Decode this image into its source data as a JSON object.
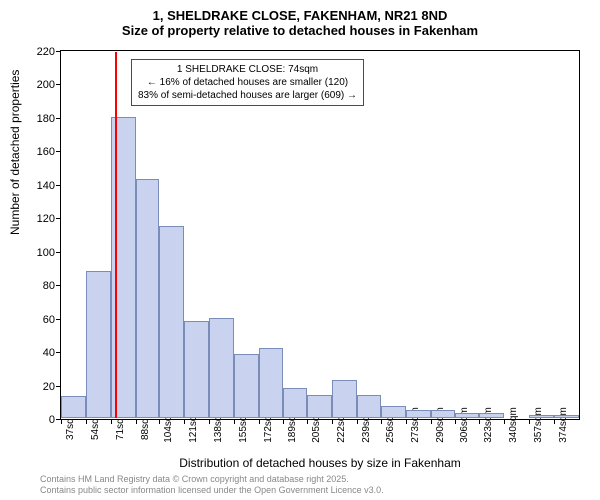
{
  "title_main": "1, SHELDRAKE CLOSE, FAKENHAM, NR21 8ND",
  "title_sub": "Size of property relative to detached houses in Fakenham",
  "y_label": "Number of detached properties",
  "x_label": "Distribution of detached houses by size in Fakenham",
  "footer_line1": "Contains HM Land Registry data © Crown copyright and database right 2025.",
  "footer_line2": "Contains public sector information licensed under the Open Government Licence v3.0.",
  "annotation": {
    "line1": "1 SHELDRAKE CLOSE: 74sqm",
    "line2": "← 16% of detached houses are smaller (120)",
    "line3": "83% of semi-detached houses are larger (609) →"
  },
  "chart": {
    "type": "histogram",
    "ylim": [
      0,
      220
    ],
    "ytick_step": 20,
    "xlim": [
      37,
      391
    ],
    "xtick_labels": [
      "37sqm",
      "54sqm",
      "71sqm",
      "88sqm",
      "104sqm",
      "121sqm",
      "138sqm",
      "155sqm",
      "172sqm",
      "189sqm",
      "205sqm",
      "222sqm",
      "239sqm",
      "256sqm",
      "273sqm",
      "290sqm",
      "306sqm",
      "323sqm",
      "340sqm",
      "357sqm",
      "374sqm"
    ],
    "xtick_values": [
      37,
      54,
      71,
      88,
      104,
      121,
      138,
      155,
      172,
      189,
      205,
      222,
      239,
      256,
      273,
      290,
      306,
      323,
      340,
      357,
      374
    ],
    "bars": [
      {
        "x": 37,
        "w": 17,
        "h": 13
      },
      {
        "x": 54,
        "w": 17,
        "h": 88
      },
      {
        "x": 71,
        "w": 17,
        "h": 180
      },
      {
        "x": 88,
        "w": 16,
        "h": 143
      },
      {
        "x": 104,
        "w": 17,
        "h": 115
      },
      {
        "x": 121,
        "w": 17,
        "h": 58
      },
      {
        "x": 138,
        "w": 17,
        "h": 60
      },
      {
        "x": 155,
        "w": 17,
        "h": 38
      },
      {
        "x": 172,
        "w": 17,
        "h": 42
      },
      {
        "x": 189,
        "w": 16,
        "h": 18
      },
      {
        "x": 205,
        "w": 17,
        "h": 14
      },
      {
        "x": 222,
        "w": 17,
        "h": 23
      },
      {
        "x": 239,
        "w": 17,
        "h": 14
      },
      {
        "x": 256,
        "w": 17,
        "h": 7
      },
      {
        "x": 273,
        "w": 17,
        "h": 5
      },
      {
        "x": 290,
        "w": 16,
        "h": 5
      },
      {
        "x": 306,
        "w": 17,
        "h": 3
      },
      {
        "x": 323,
        "w": 17,
        "h": 3
      },
      {
        "x": 340,
        "w": 17,
        "h": 0
      },
      {
        "x": 357,
        "w": 17,
        "h": 2
      },
      {
        "x": 374,
        "w": 17,
        "h": 2
      }
    ],
    "marker_value": 74,
    "bar_fill": "#c9d3ef",
    "bar_stroke": "#7a8db8",
    "marker_color": "#ff0000",
    "annotation_border": "#ff0000",
    "background": "#ffffff",
    "axis_color": "#000000"
  }
}
